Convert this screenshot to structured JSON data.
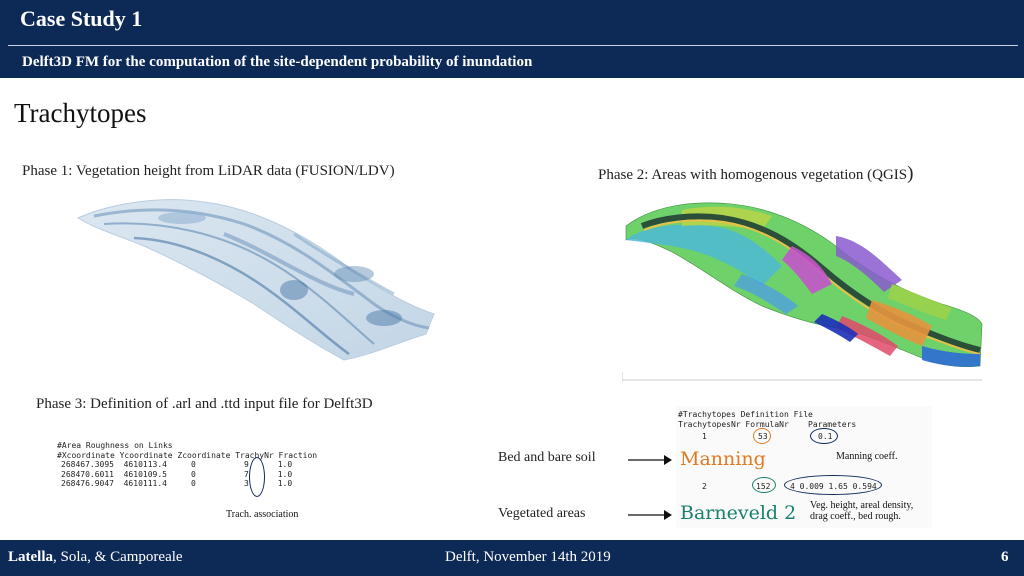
{
  "header": {
    "title": "Case Study 1",
    "subtitle": "Delft3D FM for the computation of the site-dependent probability of inundation"
  },
  "section_title": "Trachytopes",
  "phase1": {
    "caption": "Phase 1: Vegetation height from LiDAR data (FUSION/LDV)"
  },
  "phase2": {
    "caption": "Phase 2: Areas with homogenous vegetation (QGIS",
    "caption_end": ")"
  },
  "phase3": {
    "caption": "Phase 3: Definition of .arl and .ttd input file for Delft3D"
  },
  "arl_file": {
    "title": "#Area Roughness on Links",
    "header": "#Xcoordinate Ycoordinate Zcoordinate TrachyNr Fraction",
    "rows": [
      "268467.3095  4610113.4     0          9      1.0",
      "268470.6011  4610109.5     0          7      1.0",
      "268476.9047  4610111.4     0          3      1.0"
    ],
    "annotation": "Trach. association"
  },
  "ttd_file": {
    "title": "#Trachytopes Definition File",
    "header": "TrachytopesNr FormulaNr    Parameters",
    "row1_nr": "1",
    "row1_formula": "53",
    "row1_param": "0.1",
    "row2_nr": "2",
    "row2_formula": "152",
    "row2_params": "4 0.009 1.65 0.594",
    "formula1_name": "Manning",
    "formula1_note": "Manning coeff.",
    "formula2_name": "Barneveld 2",
    "formula2_note_line1": "Veg. height, areal density,",
    "formula2_note_line2": "drag coeff., bed rough."
  },
  "labels": {
    "bed": "Bed and bare soil",
    "vegetated": "Vegetated areas"
  },
  "footer": {
    "author_bold": "Latella",
    "authors_rest": ", Sola, & Camporeale",
    "place_date": "Delft, November 14th 2019",
    "page": "6"
  },
  "colors": {
    "navy": "#0d2a57",
    "manning_orange": "#e07a1f",
    "barneveld_green": "#18806d"
  }
}
